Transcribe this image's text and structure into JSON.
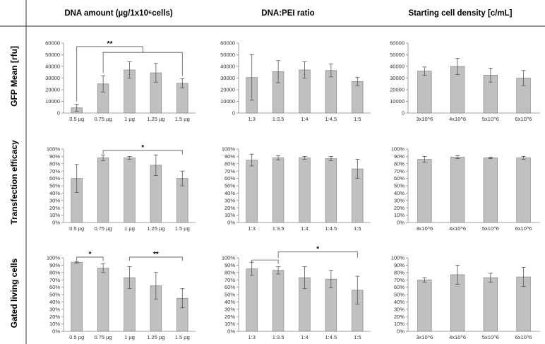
{
  "layout": {
    "col_headers": [
      "DNA amount (µg/1x10⁶cells)",
      "DNA:PEI ratio",
      "Starting cell density [c/mL]"
    ],
    "row_labels": [
      "GFP Mean [rfu]",
      "Transfection efficacy",
      "Gated living cells"
    ]
  },
  "colors": {
    "bar_fill": "#c0c0c0",
    "bar_stroke": "#7a7a7a",
    "axis": "#888888",
    "divider": "#333333"
  },
  "chart_data": [
    {
      "type": "bar",
      "id": "gfp-dna",
      "title": "",
      "xlabel": "",
      "ylabel": "",
      "categories": [
        "0.5 µg",
        "0.75 µg",
        "1 µg",
        "1.25 µg",
        "1.5 µg"
      ],
      "values": [
        4500,
        25000,
        37000,
        34500,
        25500
      ],
      "errors": [
        3000,
        7000,
        7000,
        8000,
        4000
      ],
      "ylim": [
        0,
        60000
      ],
      "yticks": [
        0,
        10000,
        20000,
        30000,
        40000,
        50000,
        60000
      ],
      "ytick_labels": [
        "0",
        "10000",
        "20000",
        "30000",
        "40000",
        "50000",
        "60000"
      ],
      "significance": [
        {
          "from": 0,
          "to_range": [
            1,
            4
          ],
          "label": "**",
          "y": 57000,
          "drop": 52000
        }
      ]
    },
    {
      "type": "bar",
      "id": "gfp-ratio",
      "title": "",
      "xlabel": "",
      "ylabel": "",
      "categories": [
        "1:3",
        "1:3.5",
        "1:4",
        "1:4.5",
        "1:5"
      ],
      "values": [
        30500,
        35500,
        37000,
        36500,
        27000
      ],
      "errors": [
        19500,
        9500,
        7000,
        5500,
        3500
      ],
      "ylim": [
        0,
        60000
      ],
      "yticks": [
        0,
        10000,
        20000,
        30000,
        40000,
        50000,
        60000
      ],
      "ytick_labels": [
        "0",
        "10000",
        "20000",
        "30000",
        "40000",
        "50000",
        "60000"
      ],
      "significance": []
    },
    {
      "type": "bar",
      "id": "gfp-density",
      "title": "",
      "xlabel": "",
      "ylabel": "",
      "categories": [
        "3x10^6",
        "4x10^6",
        "5x10^6",
        "6x10^6"
      ],
      "values": [
        36000,
        40000,
        32500,
        30000
      ],
      "errors": [
        3500,
        7000,
        6000,
        6500
      ],
      "ylim": [
        0,
        60000
      ],
      "yticks": [
        0,
        10000,
        20000,
        30000,
        40000,
        50000,
        60000
      ],
      "ytick_labels": [
        "0",
        "10000",
        "20000",
        "30000",
        "40000",
        "50000",
        "60000"
      ],
      "significance": []
    },
    {
      "type": "bar",
      "id": "eff-dna",
      "title": "",
      "xlabel": "",
      "ylabel": "",
      "categories": [
        "0.5 µg",
        "0.75 µg",
        "1 µg",
        "1.25 µg",
        "1.5 µg"
      ],
      "values": [
        60,
        88,
        88,
        78,
        60
      ],
      "errors": [
        19,
        4,
        2,
        14,
        10
      ],
      "ylim": [
        0,
        100
      ],
      "yticks": [
        0,
        10,
        20,
        30,
        40,
        50,
        60,
        70,
        80,
        90,
        100
      ],
      "ytick_labels": [
        "0%",
        "10%",
        "20%",
        "30%",
        "40%",
        "50%",
        "60%",
        "70%",
        "80%",
        "90%",
        "100%"
      ],
      "significance": [
        {
          "from": 1,
          "to": 4,
          "label": "*",
          "y": 98,
          "drop": 93
        }
      ]
    },
    {
      "type": "bar",
      "id": "eff-ratio",
      "title": "",
      "xlabel": "",
      "ylabel": "",
      "categories": [
        "1:3",
        "1:3.5",
        "1:4",
        "1:4.5",
        "1:5"
      ],
      "values": [
        85,
        88,
        88,
        87,
        73
      ],
      "errors": [
        8,
        3,
        2,
        3,
        13
      ],
      "ylim": [
        0,
        100
      ],
      "yticks": [
        0,
        10,
        20,
        30,
        40,
        50,
        60,
        70,
        80,
        90,
        100
      ],
      "ytick_labels": [
        "0%",
        "10%",
        "20%",
        "30%",
        "40%",
        "50%",
        "60%",
        "70%",
        "80%",
        "90%",
        "100%"
      ],
      "significance": []
    },
    {
      "type": "bar",
      "id": "eff-density",
      "title": "",
      "xlabel": "",
      "ylabel": "",
      "categories": [
        "3x10^6",
        "4x10^6",
        "5x10^6",
        "6x10^6"
      ],
      "values": [
        86,
        89,
        88,
        88
      ],
      "errors": [
        4,
        2,
        1,
        2
      ],
      "ylim": [
        0,
        100
      ],
      "yticks": [
        0,
        10,
        20,
        30,
        40,
        50,
        60,
        70,
        80,
        90,
        100
      ],
      "ytick_labels": [
        "0%",
        "10%",
        "20%",
        "30%",
        "40%",
        "50%",
        "60%",
        "70%",
        "80%",
        "90%",
        "100%"
      ],
      "significance": []
    },
    {
      "type": "bar",
      "id": "live-dna",
      "title": "",
      "xlabel": "",
      "ylabel": "",
      "categories": [
        "0.5 µg",
        "0.75 µg",
        "1 µg",
        "1.25 µg",
        "1.5 µg"
      ],
      "values": [
        94,
        86,
        73,
        62,
        45
      ],
      "errors": [
        1,
        6,
        15,
        18,
        13
      ],
      "ylim": [
        0,
        100
      ],
      "yticks": [
        0,
        10,
        20,
        30,
        40,
        50,
        60,
        70,
        80,
        90,
        100
      ],
      "ytick_labels": [
        "0%",
        "10%",
        "20%",
        "30%",
        "40%",
        "50%",
        "60%",
        "70%",
        "80%",
        "90%",
        "100%"
      ],
      "significance": [
        {
          "from": 0,
          "to": 1,
          "label": "*",
          "y": 101,
          "drop": 96
        },
        {
          "from": 2,
          "to": 4,
          "label": "**",
          "y": 101,
          "drop": 96
        }
      ]
    },
    {
      "type": "bar",
      "id": "live-ratio",
      "title": "",
      "xlabel": "",
      "ylabel": "",
      "categories": [
        "1:3",
        "1:3.5",
        "1:4",
        "1:4.5",
        "1:5"
      ],
      "values": [
        85,
        83,
        73,
        71,
        56
      ],
      "errors": [
        9,
        5,
        15,
        12,
        19
      ],
      "ylim": [
        0,
        100
      ],
      "yticks": [
        0,
        10,
        20,
        30,
        40,
        50,
        60,
        70,
        80,
        90,
        100
      ],
      "ytick_labels": [
        "0%",
        "10%",
        "20%",
        "30%",
        "40%",
        "50%",
        "60%",
        "70%",
        "80%",
        "90%",
        "100%"
      ],
      "significance": [
        {
          "from": 0,
          "to": 1,
          "label": "",
          "y": 97,
          "drop": 92
        },
        {
          "from": 1,
          "to": 4,
          "label": "*",
          "y": 108,
          "drop": 100
        }
      ]
    },
    {
      "type": "bar",
      "id": "live-density",
      "title": "",
      "xlabel": "",
      "ylabel": "",
      "categories": [
        "3x10^6",
        "4x10^6",
        "5x10^6",
        "6x10^6"
      ],
      "values": [
        70,
        77,
        73,
        74
      ],
      "errors": [
        3,
        13,
        6,
        13
      ],
      "ylim": [
        0,
        100
      ],
      "yticks": [
        0,
        10,
        20,
        30,
        40,
        50,
        60,
        70,
        80,
        90,
        100
      ],
      "ytick_labels": [
        "0%",
        "10%",
        "20%",
        "30%",
        "40%",
        "50%",
        "60%",
        "70%",
        "80%",
        "90%",
        "100%"
      ],
      "significance": []
    }
  ]
}
